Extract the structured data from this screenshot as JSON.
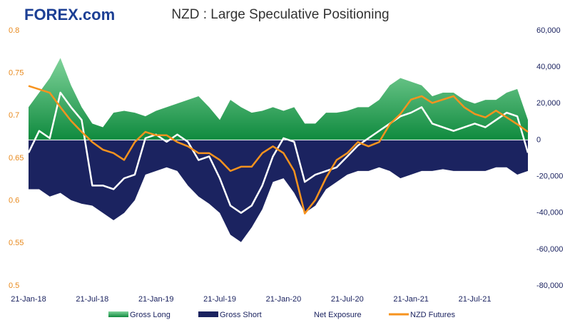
{
  "chart_data": {
    "type": "combo",
    "logo": "FOREX.com",
    "title": "NZD : Large Speculative Positioning",
    "categories": [
      "21-Jan-18",
      null,
      null,
      null,
      null,
      null,
      "21-Jul-18",
      null,
      null,
      null,
      null,
      null,
      "21-Jan-19",
      null,
      null,
      null,
      null,
      null,
      "21-Jul-19",
      null,
      null,
      null,
      null,
      null,
      "21-Jan-20",
      null,
      null,
      null,
      null,
      null,
      "21-Jul-20",
      null,
      null,
      null,
      null,
      null,
      "21-Jan-21",
      null,
      null,
      null,
      null,
      null,
      "21-Jul-21",
      null,
      null,
      null,
      null,
      null
    ],
    "ylim": [
      0.5,
      0.8
    ],
    "yticks": [
      0.5,
      0.55,
      0.6,
      0.65,
      0.7,
      0.75,
      0.8
    ],
    "y2lim": [
      -80000,
      60000
    ],
    "y2ticks": [
      {
        "value": -80000,
        "label": "-80,000"
      },
      {
        "value": -60000,
        "label": "-60,000"
      },
      {
        "value": -40000,
        "label": "-40,000"
      },
      {
        "value": -20000,
        "label": "-20,000"
      },
      0,
      {
        "value": 20000,
        "label": "20,000"
      },
      {
        "value": 40000,
        "label": "40,000"
      },
      {
        "value": 60000,
        "label": "60,000"
      }
    ],
    "series": [
      {
        "name": "Gross Long",
        "type": "area",
        "axis": "y2",
        "color": "#1e9e4c",
        "values": [
          18000,
          26000,
          34000,
          45000,
          30000,
          18000,
          9000,
          7000,
          15000,
          16000,
          15000,
          13000,
          16000,
          18000,
          20000,
          22000,
          24000,
          18000,
          11000,
          22000,
          18000,
          15000,
          16000,
          18000,
          16000,
          18000,
          9000,
          9000,
          15000,
          15000,
          16000,
          18000,
          18000,
          22000,
          30000,
          34000,
          32000,
          30000,
          24000,
          26000,
          26000,
          22000,
          20000,
          22000,
          22000,
          26000,
          28000,
          11000
        ]
      },
      {
        "name": "Gross Short",
        "type": "area",
        "axis": "y2",
        "color": "#1b2360",
        "values": [
          -27000,
          -27000,
          -31000,
          -29000,
          -33000,
          -35000,
          -36000,
          -40000,
          -44000,
          -40000,
          -33000,
          -19000,
          -17000,
          -15000,
          -17000,
          -25000,
          -31000,
          -35000,
          -40000,
          -52000,
          -56000,
          -48000,
          -38000,
          -23000,
          -21000,
          -29000,
          -40000,
          -36000,
          -27000,
          -23000,
          -19000,
          -17000,
          -17000,
          -15000,
          -17000,
          -21000,
          -19000,
          -17000,
          -17000,
          -16000,
          -17000,
          -17000,
          -17000,
          -17000,
          -15000,
          -15000,
          -19000,
          -17000
        ]
      },
      {
        "name": "Net Exposure",
        "type": "line",
        "axis": "y2",
        "color": "#ffffff",
        "values": [
          -7000,
          5000,
          1000,
          26000,
          18000,
          11000,
          -25000,
          -25000,
          -27000,
          -21000,
          -19000,
          1000,
          3000,
          -1000,
          3000,
          -1000,
          -11000,
          -9000,
          -21000,
          -36000,
          -40000,
          -36000,
          -25000,
          -9000,
          1000,
          -1000,
          -23000,
          -19000,
          -17000,
          -15000,
          -9000,
          -3000,
          1000,
          5000,
          9000,
          13000,
          15000,
          18000,
          9000,
          7000,
          5000,
          7000,
          9000,
          7000,
          11000,
          15000,
          13000,
          -7000
        ]
      },
      {
        "name": "NZD Futures",
        "type": "line",
        "axis": "y",
        "color": "#f7931e",
        "values": [
          0.735,
          0.731,
          0.727,
          0.71,
          0.694,
          0.681,
          0.669,
          0.66,
          0.656,
          0.648,
          0.669,
          0.681,
          0.677,
          0.677,
          0.669,
          0.664,
          0.656,
          0.656,
          0.648,
          0.635,
          0.64,
          0.64,
          0.656,
          0.664,
          0.656,
          0.635,
          0.585,
          0.601,
          0.627,
          0.648,
          0.656,
          0.669,
          0.664,
          0.669,
          0.69,
          0.702,
          0.719,
          0.723,
          0.715,
          0.719,
          0.723,
          0.71,
          0.702,
          0.698,
          0.706,
          0.698,
          0.69,
          0.681
        ]
      }
    ]
  }
}
